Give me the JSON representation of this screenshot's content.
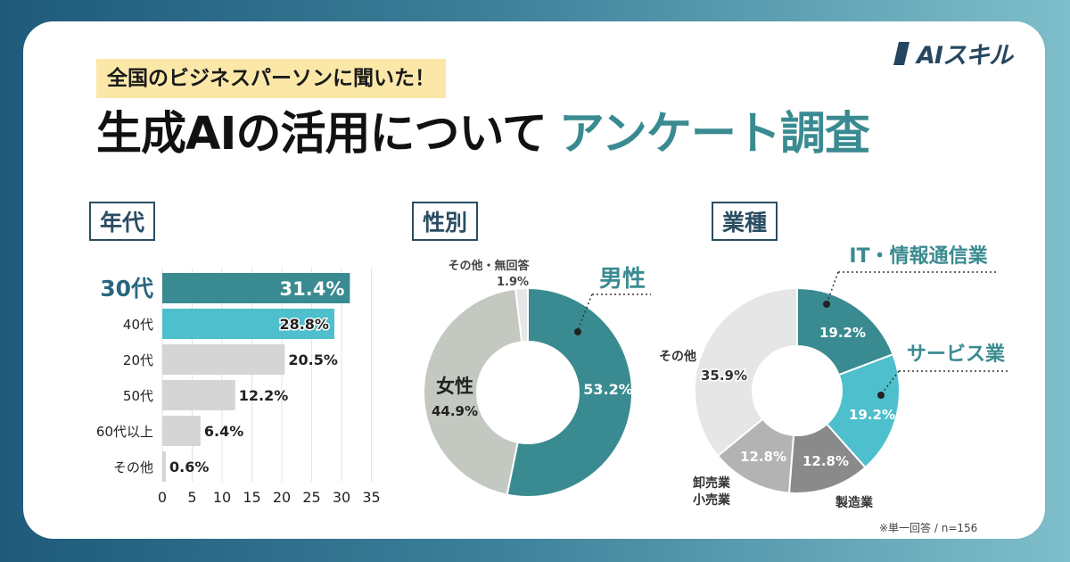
{
  "brand": {
    "logo_text": "AIスキル"
  },
  "header": {
    "kicker": "全国のビジネスパーソンに聞いた！",
    "title_main": "生成AIの活用について",
    "title_accent": "アンケート調査"
  },
  "sections": {
    "age": "年代",
    "gender": "性別",
    "industry": "業種"
  },
  "footnote": "※単一回答 / n=156",
  "colors": {
    "teal_dark": "#3a8b91",
    "teal_light": "#4ebfcc",
    "gray_light": "#d5d5d5",
    "gray_sage": "#c3c8c1",
    "gray_mid": "#b3b3b3",
    "gray_dark": "#8a8a8a",
    "navy": "#2a4d62"
  },
  "chart_data": [
    {
      "type": "bar",
      "orientation": "horizontal",
      "title": "年代",
      "categories": [
        "30代",
        "40代",
        "20代",
        "50代",
        "60代以上",
        "その他"
      ],
      "values": [
        31.4,
        28.8,
        20.5,
        12.2,
        6.4,
        0.6
      ],
      "value_labels": [
        "31.4%",
        "28.8%",
        "20.5%",
        "12.2%",
        "6.4%",
        "0.6%"
      ],
      "xlim": [
        0,
        35
      ],
      "xticks": [
        "0",
        "5",
        "10",
        "15",
        "20",
        "25",
        "30",
        "35"
      ],
      "grid": true
    },
    {
      "type": "pie",
      "style": "donut",
      "title": "性別",
      "labels": [
        "男性",
        "女性",
        "その他・無回答"
      ],
      "values": [
        53.2,
        44.9,
        1.9
      ],
      "value_labels": [
        "53.2%",
        "44.9%",
        "1.9%"
      ]
    },
    {
      "type": "pie",
      "style": "donut",
      "title": "業種",
      "labels": [
        "IT・情報通信業",
        "サービス業",
        "製造業",
        "卸売業\n小売業",
        "その他"
      ],
      "values": [
        19.2,
        19.2,
        12.8,
        12.8,
        35.9
      ],
      "value_labels": [
        "19.2%",
        "19.2%",
        "12.8%",
        "12.8%",
        "35.9%"
      ]
    }
  ]
}
